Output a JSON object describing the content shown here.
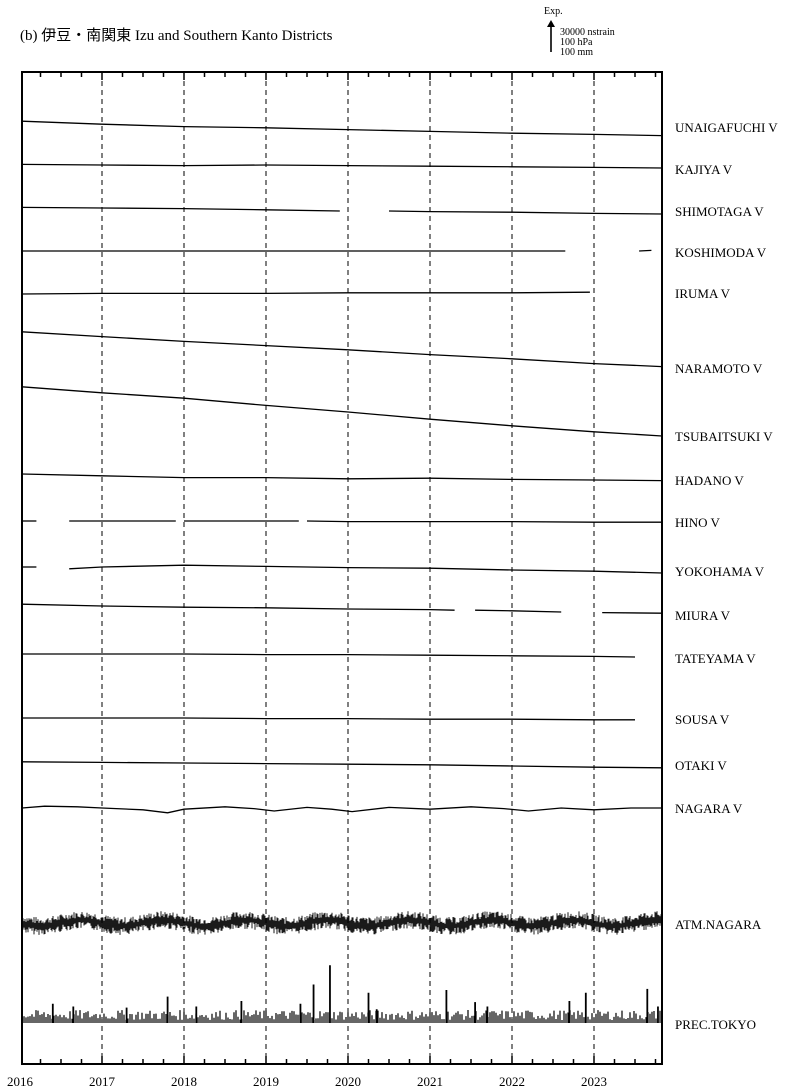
{
  "title": "(b) 伊豆・南関東 Izu and Southern Kanto Districts",
  "scale_bar": {
    "direction_label": "Exp.",
    "strain": "30000 nstrain",
    "pressure": "100 hPa",
    "precipitation": "100 mm"
  },
  "chart_data": {
    "type": "line",
    "title": "(b) 伊豆・南関東 Izu and Southern Kanto Districts",
    "xlabel": "",
    "ylabel": "",
    "x_ticks": [
      "2016",
      "2017",
      "2018",
      "2019",
      "2020",
      "2021",
      "2022",
      "2023"
    ],
    "xlim": [
      2016.0,
      2023.85
    ],
    "grid": "vertical dashed lines at year boundaries",
    "series": [
      {
        "name": "UNAIGAFUCHI V",
        "kind": "strain",
        "segments": [
          [
            [
              2016.0,
              0.8
            ],
            [
              2017.0,
              0.3
            ],
            [
              2018.0,
              -0.1
            ],
            [
              2019.0,
              -0.3
            ],
            [
              2020.0,
              -0.6
            ],
            [
              2021.0,
              -0.9
            ],
            [
              2022.0,
              -1.2
            ],
            [
              2023.0,
              -1.4
            ],
            [
              2023.85,
              -1.6
            ]
          ]
        ]
      },
      {
        "name": "KAJIYA V",
        "kind": "strain",
        "segments": [
          [
            [
              2016.0,
              0.1
            ],
            [
              2017.0,
              0.0
            ],
            [
              2018.0,
              -0.1
            ],
            [
              2019.0,
              0.0
            ],
            [
              2020.0,
              -0.1
            ],
            [
              2021.0,
              -0.2
            ],
            [
              2022.0,
              -0.3
            ],
            [
              2023.0,
              -0.4
            ],
            [
              2023.85,
              -0.5
            ]
          ]
        ]
      },
      {
        "name": "SHIMOTAGA V",
        "kind": "strain",
        "segments": [
          [
            [
              2016.0,
              0.1
            ],
            [
              2017.0,
              0.0
            ],
            [
              2018.0,
              -0.1
            ],
            [
              2019.0,
              -0.3
            ],
            [
              2019.9,
              -0.5
            ]
          ],
          [
            [
              2020.5,
              -0.5
            ],
            [
              2021.0,
              -0.6
            ],
            [
              2022.0,
              -0.7
            ],
            [
              2023.0,
              -0.9
            ],
            [
              2023.85,
              -1.0
            ]
          ]
        ]
      },
      {
        "name": "KOSHIMODA V",
        "kind": "strain",
        "segments": [
          [
            [
              2016.0,
              0.0
            ],
            [
              2017.0,
              0.0
            ],
            [
              2018.0,
              0.0
            ],
            [
              2019.0,
              0.0
            ],
            [
              2020.0,
              0.0
            ],
            [
              2021.0,
              0.0
            ],
            [
              2022.0,
              0.0
            ],
            [
              2022.65,
              0.0
            ]
          ],
          [
            [
              2023.55,
              0.0
            ],
            [
              2023.7,
              0.1
            ]
          ]
        ]
      },
      {
        "name": "IRUMA V",
        "kind": "strain",
        "segments": [
          [
            [
              2016.0,
              0.0
            ],
            [
              2017.0,
              0.1
            ],
            [
              2018.0,
              0.1
            ],
            [
              2019.0,
              0.1
            ],
            [
              2020.0,
              0.2
            ],
            [
              2021.0,
              0.2
            ],
            [
              2022.0,
              0.2
            ],
            [
              2022.95,
              0.3
            ]
          ]
        ]
      },
      {
        "name": "NARAMOTO V",
        "kind": "strain",
        "segments": [
          [
            [
              2016.0,
              3.2
            ],
            [
              2017.0,
              2.4
            ],
            [
              2018.0,
              1.6
            ],
            [
              2019.0,
              0.9
            ],
            [
              2020.0,
              0.2
            ],
            [
              2021.0,
              -0.6
            ],
            [
              2022.0,
              -1.3
            ],
            [
              2023.0,
              -2.1
            ],
            [
              2023.85,
              -2.6
            ]
          ]
        ]
      },
      {
        "name": "TSUBAITSUKI V",
        "kind": "strain",
        "segments": [
          [
            [
              2016.0,
              4.2
            ],
            [
              2017.0,
              3.2
            ],
            [
              2018.0,
              2.3
            ],
            [
              2019.0,
              1.1
            ],
            [
              2020.0,
              0.0
            ],
            [
              2021.0,
              -1.2
            ],
            [
              2022.0,
              -2.3
            ],
            [
              2023.0,
              -3.3
            ],
            [
              2023.85,
              -4.0
            ]
          ]
        ]
      },
      {
        "name": "HADANO V",
        "kind": "strain",
        "segments": [
          [
            [
              2016.0,
              0.5
            ],
            [
              2017.0,
              0.2
            ],
            [
              2018.0,
              -0.1
            ],
            [
              2019.0,
              -0.1
            ],
            [
              2020.0,
              -0.3
            ],
            [
              2021.0,
              -0.2
            ],
            [
              2022.0,
              -0.4
            ],
            [
              2023.0,
              -0.5
            ],
            [
              2023.85,
              -0.6
            ]
          ]
        ]
      },
      {
        "name": "HINO V",
        "kind": "strain",
        "segments": [
          [
            [
              2016.0,
              0.0
            ],
            [
              2016.2,
              0.0
            ]
          ],
          [
            [
              2016.6,
              0.0
            ],
            [
              2017.0,
              0.0
            ],
            [
              2017.9,
              0.0
            ]
          ],
          [
            [
              2018.0,
              0.0
            ],
            [
              2019.0,
              0.0
            ],
            [
              2019.4,
              0.0
            ]
          ],
          [
            [
              2019.5,
              0.0
            ],
            [
              2020.0,
              -0.1
            ],
            [
              2021.0,
              -0.1
            ],
            [
              2022.0,
              -0.1
            ],
            [
              2023.0,
              -0.2
            ],
            [
              2023.85,
              -0.2
            ]
          ]
        ]
      },
      {
        "name": "YOKOHAMA V",
        "kind": "strain",
        "segments": [
          [
            [
              2016.0,
              0.0
            ],
            [
              2016.2,
              0.0
            ]
          ],
          [
            [
              2016.6,
              -0.3
            ],
            [
              2017.0,
              0.0
            ],
            [
              2018.0,
              0.3
            ],
            [
              2019.0,
              0.1
            ],
            [
              2020.0,
              -0.1
            ],
            [
              2021.0,
              -0.2
            ],
            [
              2022.0,
              -0.5
            ],
            [
              2023.0,
              -0.7
            ],
            [
              2023.85,
              -1.0
            ]
          ]
        ]
      },
      {
        "name": "MIURA V",
        "kind": "strain",
        "segments": [
          [
            [
              2016.0,
              0.8
            ],
            [
              2017.0,
              0.5
            ],
            [
              2018.0,
              0.3
            ],
            [
              2019.0,
              0.2
            ],
            [
              2020.0,
              0.0
            ],
            [
              2021.0,
              -0.1
            ],
            [
              2021.3,
              -0.2
            ]
          ],
          [
            [
              2021.55,
              -0.2
            ],
            [
              2022.0,
              -0.3
            ],
            [
              2022.6,
              -0.5
            ]
          ],
          [
            [
              2023.1,
              -0.6
            ],
            [
              2023.85,
              -0.7
            ]
          ]
        ]
      },
      {
        "name": "TATEYAMA V",
        "kind": "strain",
        "segments": [
          [
            [
              2016.0,
              0.0
            ],
            [
              2017.0,
              0.0
            ],
            [
              2018.0,
              0.0
            ],
            [
              2019.0,
              -0.1
            ],
            [
              2020.0,
              -0.1
            ],
            [
              2021.0,
              -0.2
            ],
            [
              2022.0,
              -0.3
            ],
            [
              2023.0,
              -0.4
            ],
            [
              2023.5,
              -0.5
            ]
          ]
        ]
      },
      {
        "name": "SOUSA V",
        "kind": "strain",
        "segments": [
          [
            [
              2016.0,
              0.0
            ],
            [
              2017.0,
              0.0
            ],
            [
              2018.0,
              0.0
            ],
            [
              2019.0,
              -0.1
            ],
            [
              2020.0,
              -0.1
            ],
            [
              2021.0,
              -0.2
            ],
            [
              2022.0,
              -0.2
            ],
            [
              2023.0,
              -0.3
            ],
            [
              2023.5,
              -0.3
            ]
          ]
        ]
      },
      {
        "name": "OTAKI V",
        "kind": "strain",
        "segments": [
          [
            [
              2016.0,
              0.2
            ],
            [
              2017.0,
              0.1
            ],
            [
              2018.0,
              0.0
            ],
            [
              2019.0,
              -0.1
            ],
            [
              2020.0,
              -0.2
            ],
            [
              2021.0,
              -0.3
            ],
            [
              2022.0,
              -0.5
            ],
            [
              2023.0,
              -0.7
            ],
            [
              2023.85,
              -0.8
            ]
          ]
        ]
      },
      {
        "name": "NAGARA V",
        "kind": "strain",
        "segments": [
          [
            [
              2016.0,
              0.0
            ],
            [
              2016.3,
              0.3
            ],
            [
              2016.7,
              0.2
            ],
            [
              2017.0,
              0.0
            ],
            [
              2017.5,
              -0.3
            ],
            [
              2017.8,
              -0.8
            ],
            [
              2018.0,
              -0.2
            ],
            [
              2018.5,
              0.2
            ],
            [
              2018.85,
              -0.1
            ],
            [
              2019.1,
              -0.5
            ],
            [
              2019.5,
              0.1
            ],
            [
              2019.8,
              -0.2
            ],
            [
              2020.05,
              -0.6
            ],
            [
              2020.5,
              0.1
            ],
            [
              2021.0,
              -0.2
            ],
            [
              2021.5,
              0.2
            ],
            [
              2021.9,
              -0.1
            ],
            [
              2022.2,
              -0.5
            ],
            [
              2022.6,
              0.0
            ],
            [
              2023.0,
              -0.3
            ],
            [
              2023.45,
              0.0
            ],
            [
              2023.85,
              0.0
            ]
          ]
        ]
      }
    ],
    "atm_series": {
      "name": "ATM.NAGARA",
      "unit": "hPa",
      "description": "noisy daily atmospheric pressure, seasonal cycle, range about ±15 hPa"
    },
    "precip_series": {
      "name": "PREC.TOKYO",
      "unit": "mm",
      "events": [
        {
          "x": 2016.4,
          "mm": 35
        },
        {
          "x": 2016.65,
          "mm": 30
        },
        {
          "x": 2017.3,
          "mm": 28
        },
        {
          "x": 2017.8,
          "mm": 48
        },
        {
          "x": 2018.15,
          "mm": 30
        },
        {
          "x": 2018.7,
          "mm": 40
        },
        {
          "x": 2019.42,
          "mm": 35
        },
        {
          "x": 2019.58,
          "mm": 70
        },
        {
          "x": 2019.78,
          "mm": 105
        },
        {
          "x": 2020.25,
          "mm": 55
        },
        {
          "x": 2020.35,
          "mm": 25
        },
        {
          "x": 2021.2,
          "mm": 60
        },
        {
          "x": 2021.55,
          "mm": 38
        },
        {
          "x": 2021.7,
          "mm": 30
        },
        {
          "x": 2022.7,
          "mm": 40
        },
        {
          "x": 2022.9,
          "mm": 55
        },
        {
          "x": 2023.65,
          "mm": 62
        },
        {
          "x": 2023.78,
          "mm": 30
        }
      ]
    }
  },
  "colors": {
    "line": "#000000",
    "background": "#ffffff"
  }
}
